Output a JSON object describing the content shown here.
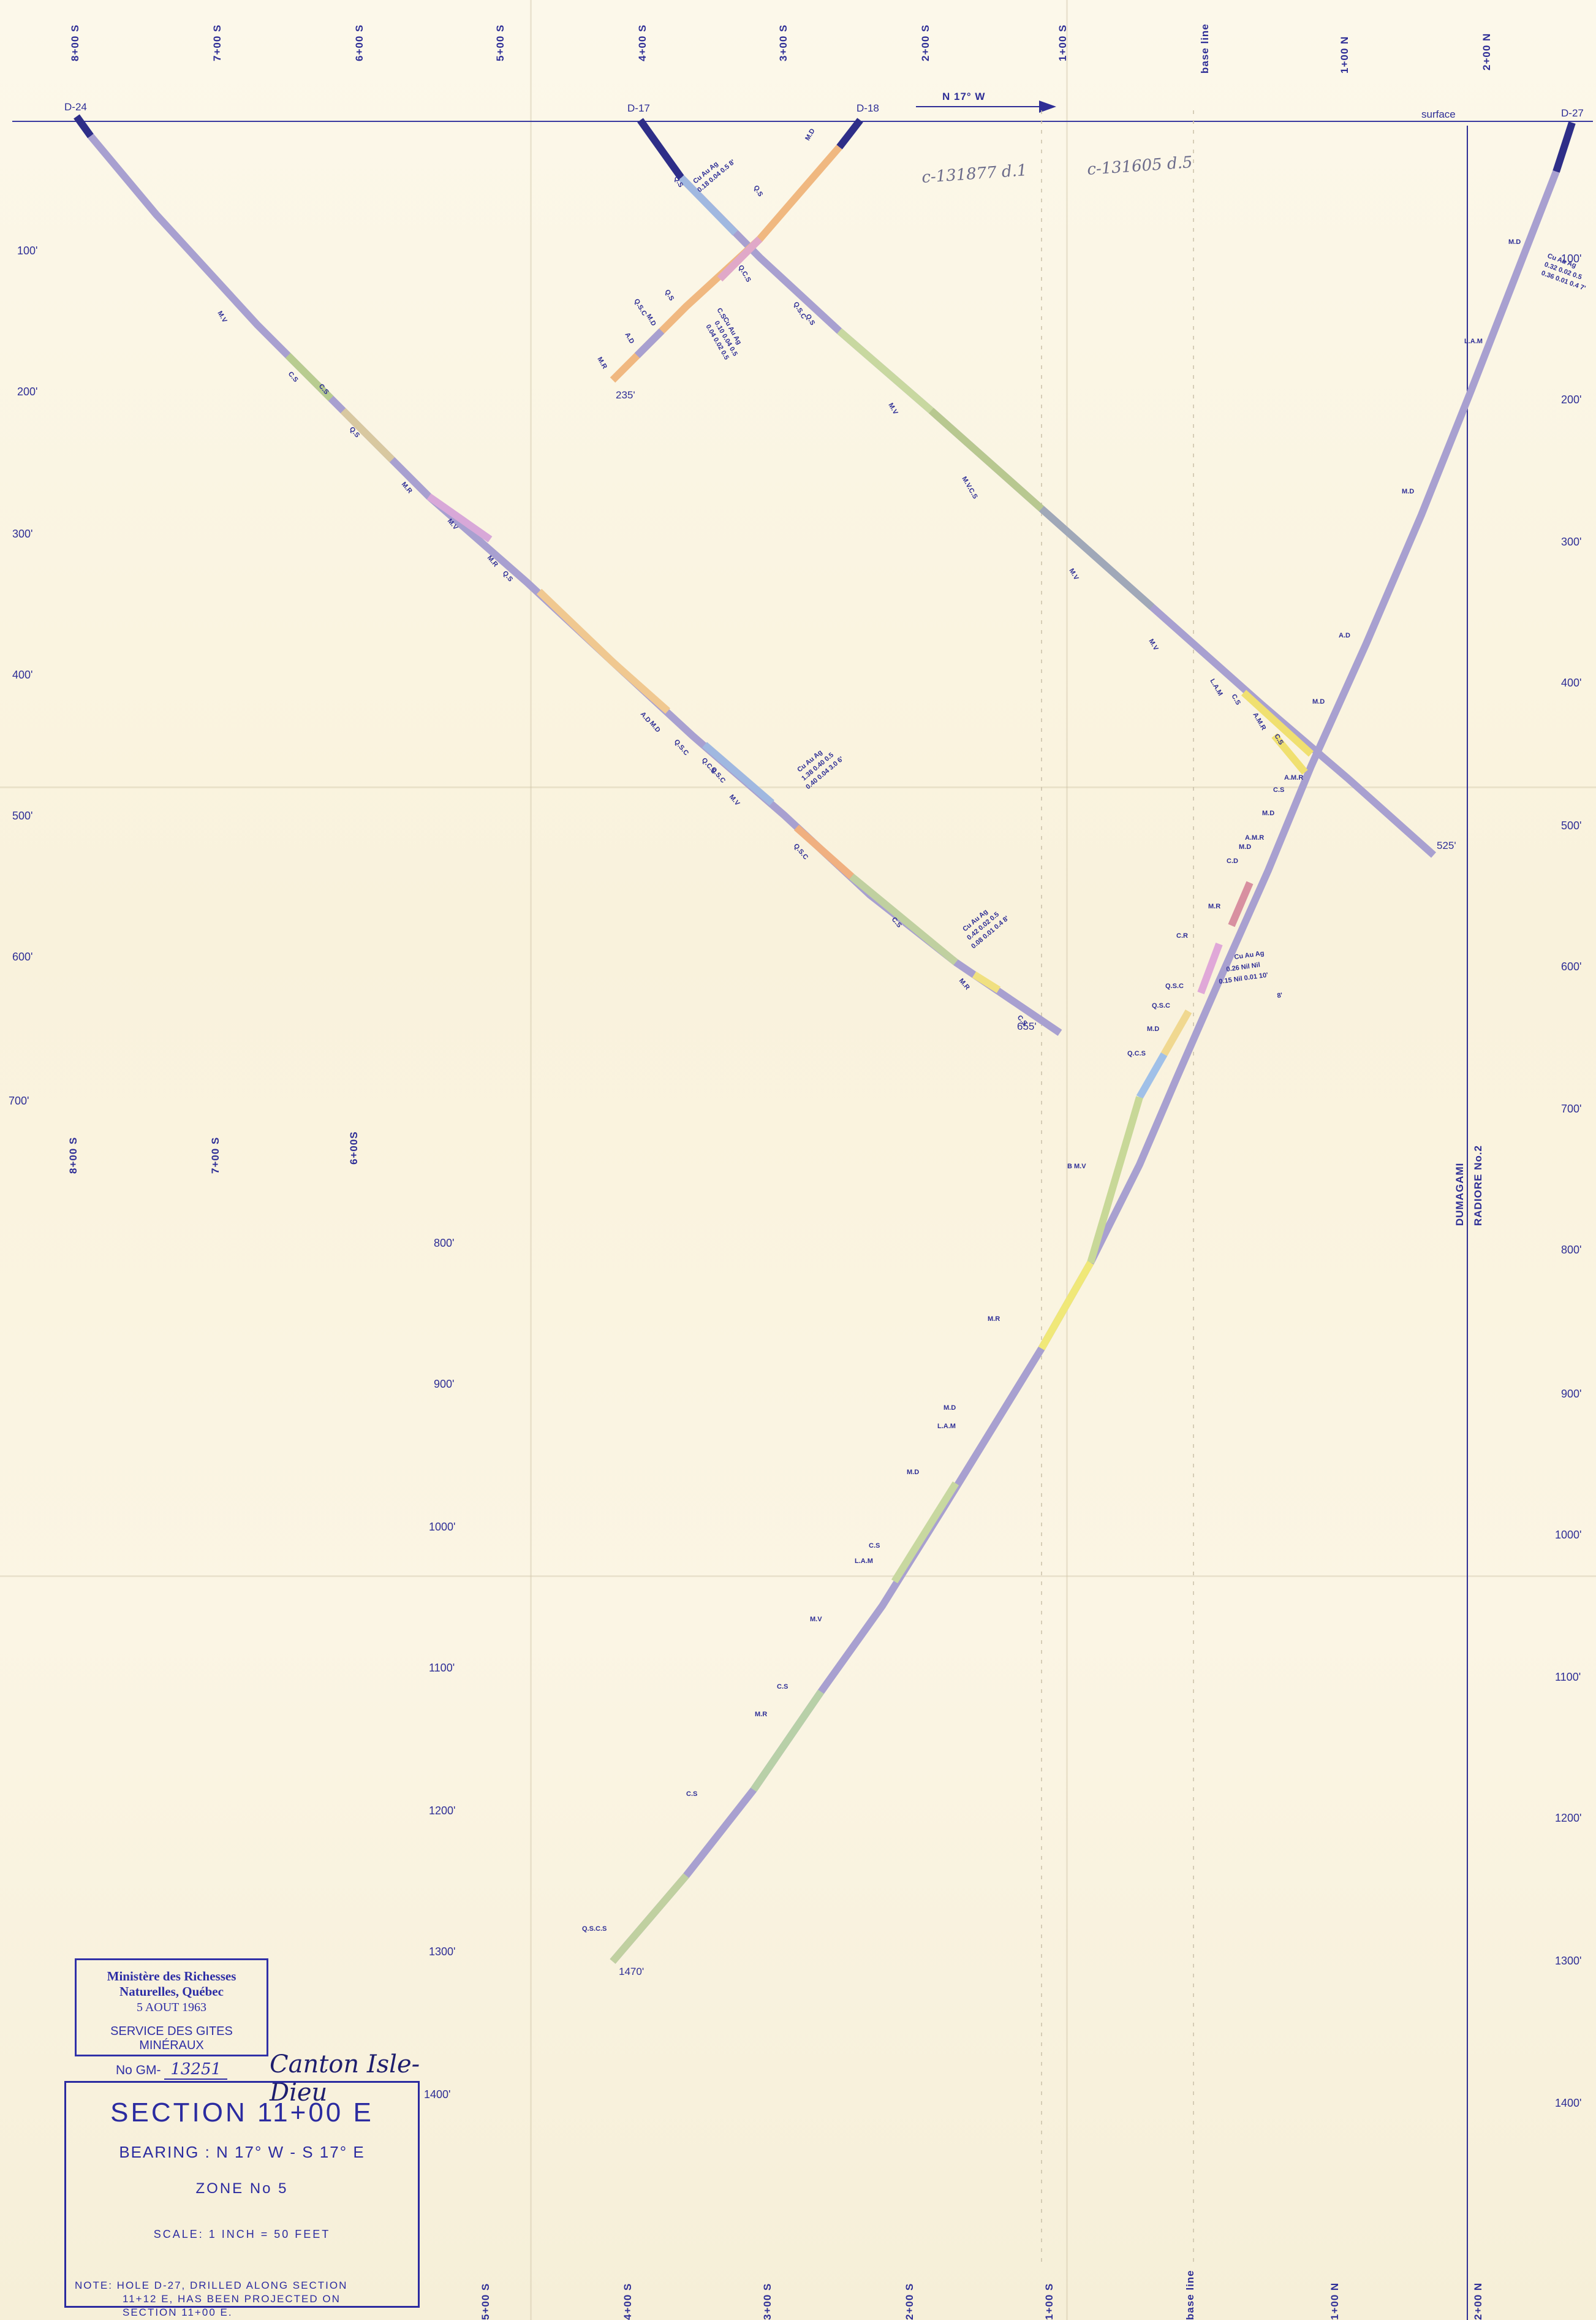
{
  "section": {
    "grid_top": [
      "8+00 S",
      "7+00 S",
      "6+00 S",
      "5+00 S",
      "4+00 S",
      "3+00 S",
      "2+00 S",
      "1+00 S",
      "base line",
      "1+00 N",
      "2+00 N"
    ],
    "grid_mid": [
      "8+00 S",
      "7+00 S",
      "6+00S"
    ],
    "grid_bottom": [
      "5+00 S",
      "4+00 S",
      "3+00 S",
      "2+00 S",
      "1+00 S",
      "base line",
      "1+00 N",
      "2+00 N"
    ],
    "depths_left": [
      "100'",
      "200'",
      "300'",
      "400'",
      "500'",
      "600'",
      "700'"
    ],
    "depths_center": [
      "800'",
      "900'",
      "1000'",
      "1100'",
      "1200'",
      "1300'",
      "1400'"
    ],
    "depths_right": [
      "100'",
      "200'",
      "300'",
      "400'",
      "500'",
      "600'",
      "700'",
      "800'",
      "900'",
      "1000'",
      "1100'",
      "1200'",
      "1300'",
      "1400'"
    ],
    "bearing_arrow": "N 17° W",
    "surface_label": "surface",
    "vertical_line_label_1": "DUMAGAMI",
    "vertical_line_label_2": "RADIORE No.2",
    "handwritten_1": "c-131877 d.1",
    "handwritten_2": "c-131605 d.5"
  },
  "holes": [
    {
      "id": "D-24",
      "end_depth": "655'",
      "codes": [
        "M.V",
        "C.S",
        "C.S",
        "Q.S",
        "M.R",
        "M.V",
        "M.R",
        "Q.S",
        "A.D",
        "M.D",
        "Q.S.C",
        "Q.C.S",
        "Q.S.C",
        "M.V",
        "Q.S.C",
        "C.S",
        "M.R",
        "C.S"
      ]
    },
    {
      "id": "D-17",
      "end_depth": "525'",
      "codes": [
        "Q.S",
        "Q.S",
        "Q.C.S",
        "Q.S.C",
        "Q.S",
        "M.V",
        "M.V.C.S",
        "M.V",
        "M.V",
        "L.A.M",
        "C.S",
        "A.M.R",
        "C.S"
      ]
    },
    {
      "id": "D-18",
      "end_depth": "235'",
      "codes": [
        "M.D",
        "Q.S",
        "Q.S.C",
        "M.D",
        "A.D",
        "M.R",
        "C.S"
      ]
    },
    {
      "id": "D-27",
      "end_depth": "1470'",
      "codes": [
        "M.D",
        "L.A.M",
        "M.D",
        "A.D",
        "M.D",
        "A.M.R",
        "C.S",
        "M.D",
        "A.M.R",
        "M.D",
        "C.D",
        "M.R",
        "C.R",
        "Q.S.C",
        "Q.S.C",
        "M.D",
        "Q.C.S",
        "B M.V",
        "M.R",
        "M.D",
        "L.A.M",
        "M.D",
        "C.S",
        "L.A.M",
        "M.V",
        "C.S",
        "M.R",
        "C.S",
        "Q.S.C.S"
      ]
    }
  ],
  "assays": {
    "d24": [
      "Cu  Au  Ag",
      "1.38  0.40  0.5",
      "0.40  0.04  3.0  6'"
    ],
    "d24b": [
      "Cu  Au  Ag",
      "0.42  0.02  0.5",
      "0.08  0.01  0.4  8'"
    ],
    "d17": [
      "Cu  Au  Ag",
      "0.18  0.04  0.5  8'"
    ],
    "d18": [
      "Cu  Au  Ag",
      "0.10  0.04  0.5",
      "0.04  0.02  0.5"
    ],
    "d27a": [
      "Cu  Au  Ag",
      "0.32  0.02  0.5",
      "0.36  0.01  0.4  7'"
    ],
    "d27b": [
      "Cu  Au  Ag",
      "0.26  Nil  Nil",
      "0.15  Nil  0.01  10'",
      "8'"
    ]
  },
  "stamp": {
    "line1": "Ministère des Richesses Naturelles, Québec",
    "line2": "5  AOUT 1963",
    "line3": "SERVICE DES GITES MINÉRAUX",
    "no_prefix": "No GM-",
    "no_value": "13251"
  },
  "signature": "Canton Isle-Dieu",
  "title_block": {
    "title": "SECTION  11+00 E",
    "bearing": "BEARING : N 17° W - S 17° E",
    "zone": "ZONE  No 5",
    "scale": "SCALE:  1 INCH = 50 FEET",
    "note_1": "NOTE: HOLE D-27, DRILLED ALONG SECTION",
    "note_2": "11+12 E, HAS BEEN PROJECTED ON",
    "note_3": "SECTION 11+00 E."
  }
}
